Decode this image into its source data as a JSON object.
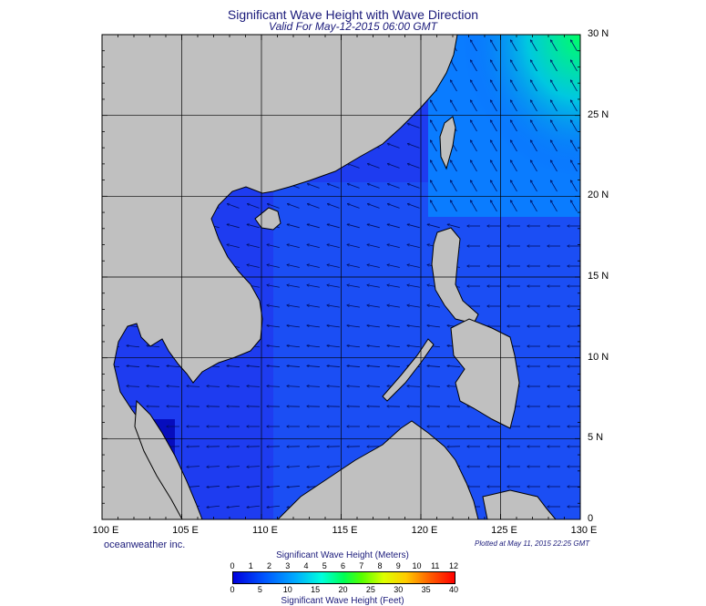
{
  "title": "Significant Wave Height with Wave Direction",
  "subtitle": "Valid For May-12-2015 06:00 GMT",
  "map": {
    "lat_labels": [
      "30 N",
      "25 N",
      "20 N",
      "15 N",
      "10 N",
      "5 N",
      "0"
    ],
    "lon_labels": [
      "100 E",
      "105 E",
      "110 E",
      "115 E",
      "120 E",
      "125 E",
      "130 E"
    ],
    "colors": {
      "land": "#c0c0c0",
      "sea_low": "#1e3cf0",
      "sea_mid": "#0a7cff",
      "sea_high": "#00e68c",
      "coast": "#000000",
      "grid": "#000000",
      "arrow": "#000033"
    }
  },
  "credit": "oceanweather inc.",
  "plotted": "Plotted at May 11, 2015 22:25 GMT",
  "legend": {
    "meters_title": "Significant Wave Height (Meters)",
    "feet_title": "Significant Wave Height (Feet)",
    "meters_ticks": [
      "0",
      "1",
      "2",
      "3",
      "4",
      "5",
      "6",
      "7",
      "8",
      "9",
      "10",
      "11",
      "12"
    ],
    "feet_ticks": [
      "0",
      "5",
      "10",
      "15",
      "20",
      "25",
      "30",
      "35",
      "40"
    ]
  }
}
